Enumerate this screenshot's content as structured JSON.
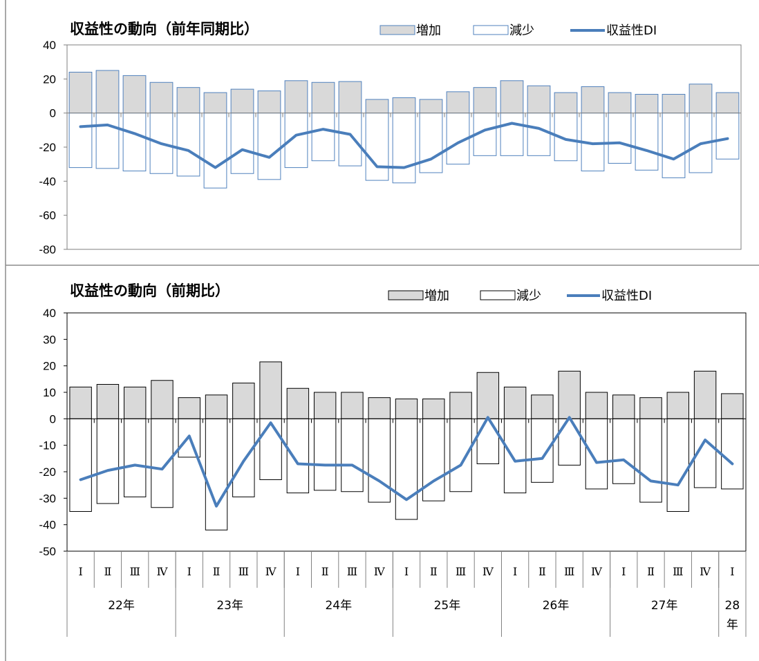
{
  "colors": {
    "increase_fill_top": "#d9d9d9",
    "increase_stroke_top": "#4f81bd",
    "decrease_fill": "#ffffff",
    "decrease_stroke_top": "#4f81bd",
    "increase_fill_bottom": "#d9d9d9",
    "bar_stroke_bottom": "#000000",
    "di_line": "#4a7ebb",
    "panel_border": "#8c8c8c",
    "axis": "#000000"
  },
  "chart_data": [
    {
      "type": "bar",
      "title": "収益性の動向（前年同期比）",
      "legend": {
        "increase": "増加",
        "decrease": "減少",
        "di": "収益性DI",
        "placement": "top-right"
      },
      "ylim": [
        -80,
        40
      ],
      "yticks": [
        "40",
        "20",
        "0",
        "-20",
        "-40",
        "-60",
        "-80"
      ],
      "series": [
        {
          "name": "増加",
          "values": [
            24,
            25,
            22,
            18,
            15,
            12,
            14,
            13,
            19,
            18,
            18.5,
            8,
            9,
            8,
            12.5,
            15,
            19,
            16,
            12,
            15.5,
            12,
            11,
            11,
            17,
            12
          ]
        },
        {
          "name": "減少",
          "values": [
            -32,
            -32.5,
            -34,
            -35.5,
            -37,
            -44,
            -35.5,
            -39,
            -32,
            -28,
            -31,
            -39.5,
            -41,
            -35,
            -30,
            -25,
            -25,
            -25,
            -28,
            -34,
            -29.5,
            -33.5,
            -38,
            -35,
            -27
          ]
        },
        {
          "name": "収益性DI",
          "values": [
            -8,
            -7,
            -12,
            -18,
            -22,
            -32,
            -21.5,
            -26,
            -13,
            -9.5,
            -12.5,
            -31.5,
            -32,
            -27,
            -17.5,
            -10,
            -6,
            -9,
            -15.5,
            -18,
            -17.5,
            -22,
            -27,
            -18,
            -15
          ]
        }
      ]
    },
    {
      "type": "bar",
      "title": "収益性の動向（前期比）",
      "legend": {
        "increase": "増加",
        "decrease": "減少",
        "di": "収益性DI",
        "placement": "top-right"
      },
      "ylim": [
        -50,
        40
      ],
      "yticks": [
        "40",
        "30",
        "20",
        "10",
        "0",
        "-10",
        "-20",
        "-30",
        "-40",
        "-50"
      ],
      "categories": [
        "Ⅰ",
        "Ⅱ",
        "Ⅲ",
        "Ⅳ",
        "Ⅰ",
        "Ⅱ",
        "Ⅲ",
        "Ⅳ",
        "Ⅰ",
        "Ⅱ",
        "Ⅲ",
        "Ⅳ",
        "Ⅰ",
        "Ⅱ",
        "Ⅲ",
        "Ⅳ",
        "Ⅰ",
        "Ⅱ",
        "Ⅲ",
        "Ⅳ",
        "Ⅰ",
        "Ⅱ",
        "Ⅲ",
        "Ⅳ",
        "Ⅰ"
      ],
      "years": [
        {
          "label": "22年",
          "count": 4
        },
        {
          "label": "23年",
          "count": 4
        },
        {
          "label": "24年",
          "count": 4
        },
        {
          "label": "25年",
          "count": 4
        },
        {
          "label": "26年",
          "count": 4
        },
        {
          "label": "27年",
          "count": 4
        },
        {
          "label": "28年",
          "count": 1
        }
      ],
      "series": [
        {
          "name": "増加",
          "values": [
            12,
            13,
            12,
            14.5,
            8,
            9,
            13.5,
            21.5,
            11.5,
            10,
            10,
            8,
            7.5,
            7.5,
            10,
            17.5,
            12,
            9,
            18,
            10,
            9,
            8,
            10,
            18,
            9.5
          ]
        },
        {
          "name": "減少",
          "values": [
            -35,
            -32,
            -29.5,
            -33.5,
            -14.5,
            -42,
            -29.5,
            -23,
            -28,
            -27,
            -27.5,
            -31.5,
            -38,
            -31,
            -27.5,
            -17,
            -28,
            -24,
            -17.5,
            -26.5,
            -24.5,
            -31.5,
            -35,
            -26,
            -26.5
          ]
        },
        {
          "name": "収益性DI",
          "values": [
            -23,
            -19.5,
            -17.5,
            -19,
            -6.5,
            -33,
            -16,
            -1.5,
            -17,
            -17.5,
            -17.5,
            -23.5,
            -30.5,
            -23.5,
            -17.5,
            0.5,
            -16,
            -15,
            0.5,
            -16.5,
            -15.5,
            -23.5,
            -25,
            -8,
            -17
          ]
        }
      ]
    }
  ]
}
